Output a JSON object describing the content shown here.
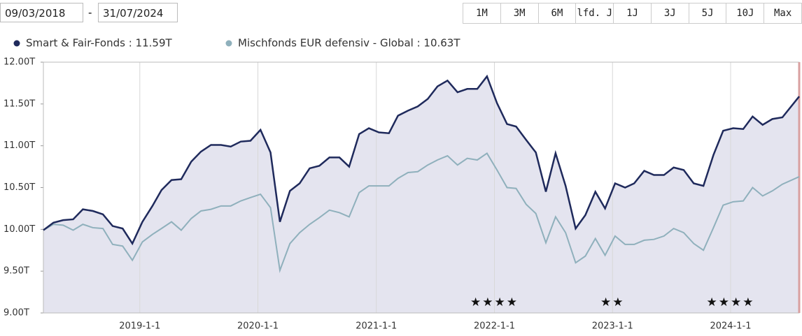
{
  "date_range": {
    "from": "09/03/2018",
    "separator": "-",
    "to": "31/07/2024"
  },
  "range_buttons": [
    "1M",
    "3M",
    "6M",
    "lfd. J",
    "1J",
    "3J",
    "5J",
    "10J",
    "Max"
  ],
  "chart_data": {
    "type": "line",
    "x": [
      "2018-03-09",
      "2018-04-09",
      "2018-05-09",
      "2018-06-09",
      "2018-07-09",
      "2018-08-09",
      "2018-09-09",
      "2018-10-09",
      "2018-11-09",
      "2018-12-09",
      "2019-01-09",
      "2019-02-09",
      "2019-03-09",
      "2019-04-09",
      "2019-05-09",
      "2019-06-09",
      "2019-07-09",
      "2019-08-09",
      "2019-09-09",
      "2019-10-09",
      "2019-11-09",
      "2019-12-09",
      "2020-01-09",
      "2020-02-09",
      "2020-03-09",
      "2020-04-09",
      "2020-05-09",
      "2020-06-09",
      "2020-07-09",
      "2020-08-09",
      "2020-09-09",
      "2020-10-09",
      "2020-11-09",
      "2020-12-09",
      "2021-01-09",
      "2021-02-09",
      "2021-03-09",
      "2021-04-09",
      "2021-05-09",
      "2021-06-09",
      "2021-07-09",
      "2021-08-09",
      "2021-09-09",
      "2021-10-09",
      "2021-11-09",
      "2021-12-09",
      "2022-01-09",
      "2022-02-09",
      "2022-03-09",
      "2022-04-09",
      "2022-05-09",
      "2022-06-09",
      "2022-07-09",
      "2022-08-09",
      "2022-09-09",
      "2022-10-09",
      "2022-11-09",
      "2022-12-09",
      "2023-01-09",
      "2023-02-09",
      "2023-03-09",
      "2023-04-09",
      "2023-05-09",
      "2023-06-09",
      "2023-07-09",
      "2023-08-09",
      "2023-09-09",
      "2023-10-09",
      "2023-11-09",
      "2023-12-09",
      "2024-01-09",
      "2024-02-09",
      "2024-03-09",
      "2024-04-09",
      "2024-05-09",
      "2024-06-09",
      "2024-07-31"
    ],
    "series": [
      {
        "name": "Smart & Fair-Fonds : 11.59T",
        "color": "#1f2a5c",
        "fill": "#e4e4ef",
        "values": [
          9.99,
          10.08,
          10.11,
          10.12,
          10.24,
          10.22,
          10.18,
          10.04,
          10.01,
          9.83,
          10.09,
          10.28,
          10.47,
          10.59,
          10.6,
          10.81,
          10.93,
          11.01,
          11.01,
          10.99,
          11.05,
          11.06,
          11.19,
          10.92,
          10.09,
          10.46,
          10.55,
          10.73,
          10.76,
          10.86,
          10.86,
          10.75,
          11.14,
          11.21,
          11.16,
          11.15,
          11.36,
          11.42,
          11.47,
          11.56,
          11.71,
          11.78,
          11.64,
          11.68,
          11.68,
          11.83,
          11.51,
          11.26,
          11.23,
          11.07,
          10.92,
          10.45,
          10.91,
          10.52,
          10.01,
          10.17,
          10.45,
          10.25,
          10.55,
          10.5,
          10.55,
          10.7,
          10.65,
          10.65,
          10.74,
          10.71,
          10.55,
          10.52,
          10.89,
          11.18,
          11.21,
          11.2,
          11.35,
          11.25,
          11.32,
          11.34,
          11.59
        ]
      },
      {
        "name": "Mischfonds EUR defensiv - Global : 10.63T",
        "color": "#8fb0bc",
        "values": [
          9.99,
          10.06,
          10.05,
          9.99,
          10.06,
          10.02,
          10.01,
          9.82,
          9.8,
          9.63,
          9.85,
          9.94,
          10.01,
          10.09,
          9.99,
          10.13,
          10.22,
          10.24,
          10.28,
          10.28,
          10.34,
          10.38,
          10.42,
          10.26,
          9.51,
          9.83,
          9.96,
          10.06,
          10.14,
          10.23,
          10.2,
          10.15,
          10.44,
          10.52,
          10.52,
          10.52,
          10.61,
          10.68,
          10.69,
          10.77,
          10.83,
          10.88,
          10.77,
          10.85,
          10.83,
          10.91,
          10.71,
          10.5,
          10.49,
          10.3,
          10.19,
          9.84,
          10.15,
          9.96,
          9.6,
          9.68,
          9.89,
          9.69,
          9.92,
          9.82,
          9.82,
          9.87,
          9.88,
          9.92,
          10.01,
          9.96,
          9.83,
          9.75,
          10.02,
          10.29,
          10.33,
          10.34,
          10.5,
          10.4,
          10.46,
          10.54,
          10.63
        ]
      }
    ],
    "xlim": [
      "2018-03-09",
      "2024-07-31"
    ],
    "xticks": [
      "2019-1-1",
      "2020-1-1",
      "2021-1-1",
      "2022-1-1",
      "2023-1-1",
      "2024-1-1"
    ],
    "ylim": [
      9,
      12
    ],
    "yticks": [
      {
        "value": 9,
        "label": "9.00T"
      },
      {
        "value": 9.5,
        "label": "9.50T"
      },
      {
        "value": 10,
        "label": "10.00T"
      },
      {
        "value": 10.5,
        "label": "10.50T"
      },
      {
        "value": 11,
        "label": "11.00T"
      },
      {
        "value": 11.5,
        "label": "11.50T"
      },
      {
        "value": 12,
        "label": "12.00T"
      }
    ],
    "grid": "x",
    "annotations": [
      {
        "text": "★★★★",
        "x": "2022-1-1"
      },
      {
        "text": "★★",
        "x": "2023-1-1"
      },
      {
        "text": "★★★★",
        "x": "2024-1-1"
      }
    ]
  }
}
